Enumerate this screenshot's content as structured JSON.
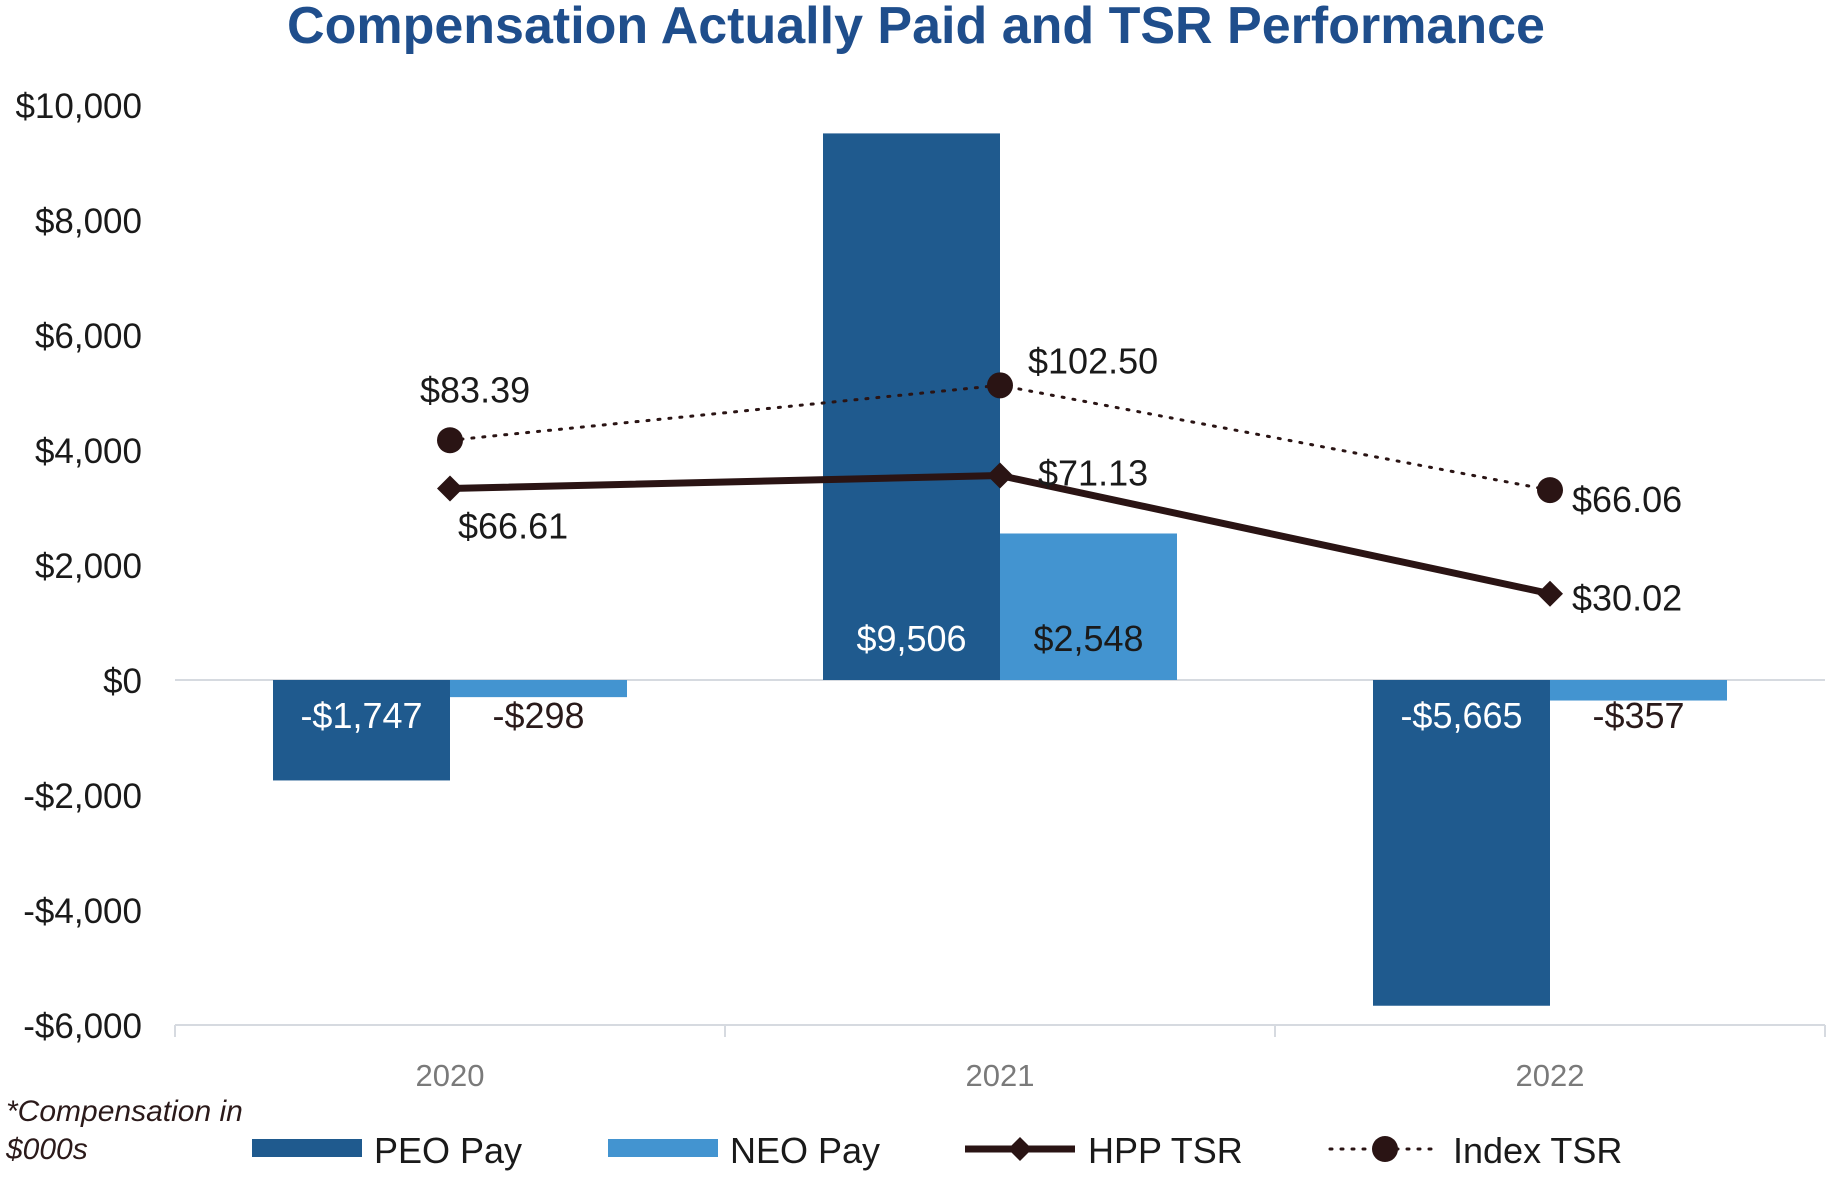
{
  "chart_data": {
    "type": "bar",
    "title": "Compensation Actually Paid and TSR Performance",
    "categories": [
      "2020",
      "2021",
      "2022"
    ],
    "ylim": [
      -6000,
      10000
    ],
    "yticks": [
      10000,
      8000,
      6000,
      4000,
      2000,
      0,
      -2000,
      -4000,
      -6000
    ],
    "ytick_labels": [
      "$10,000",
      "$8,000",
      "$6,000",
      "$4,000",
      "$2,000",
      "$0",
      "-$2,000",
      "-$4,000",
      "-$6,000"
    ],
    "grid": false,
    "series": [
      {
        "name": "PEO Pay",
        "type": "bar",
        "color": "#1f5a8e",
        "values": [
          -1747,
          9506,
          -5665
        ],
        "labels": [
          "-$1,747",
          "$9,506",
          "-$5,665"
        ]
      },
      {
        "name": "NEO Pay",
        "type": "bar",
        "color": "#4394d0",
        "values": [
          -298,
          2548,
          -357
        ],
        "labels": [
          "-$298",
          "$2,548",
          "-$357"
        ]
      },
      {
        "name": "HPP TSR",
        "type": "line",
        "color": "#2a1414",
        "marker": "diamond",
        "values": [
          66.61,
          71.13,
          30.02
        ],
        "labels": [
          "$66.61",
          "$71.13",
          "$30.02"
        ]
      },
      {
        "name": "Index TSR",
        "type": "line",
        "style": "dotted",
        "color": "#2a1414",
        "marker": "circle",
        "values": [
          83.39,
          102.5,
          66.06
        ],
        "labels": [
          "$83.39",
          "$102.50",
          "$66.06"
        ]
      }
    ],
    "footnote_lines": [
      "*Compensation in",
      "$000s"
    ],
    "legend_position": "bottom"
  }
}
